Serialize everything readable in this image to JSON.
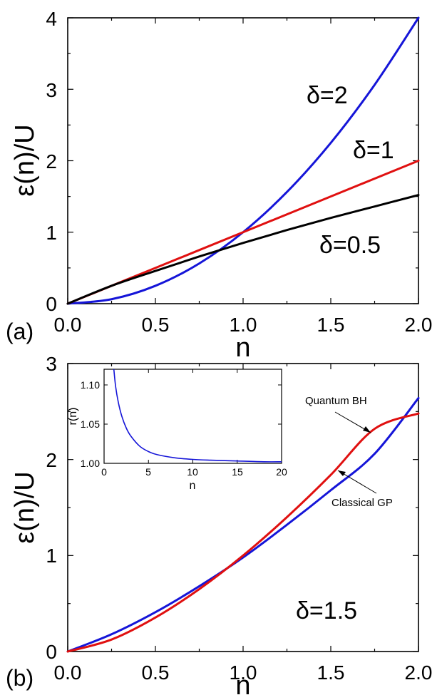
{
  "chart_data": [
    {
      "panel": "(a)",
      "type": "line",
      "xlabel": "n",
      "ylabel": "ε(n)/U",
      "xlim": [
        0.0,
        2.0
      ],
      "ylim": [
        0,
        4
      ],
      "xticks": [
        "0.0",
        "0.5",
        "1.0",
        "1.5",
        "2.0"
      ],
      "yticks": [
        "0",
        "1",
        "2",
        "3",
        "4"
      ],
      "grid": false,
      "series": [
        {
          "name": "δ=2",
          "color": "#1515d8",
          "x": [
            0,
            0.25,
            0.5,
            0.75,
            1.0,
            1.25,
            1.5,
            1.75,
            2.0
          ],
          "y": [
            0,
            0.0625,
            0.25,
            0.5625,
            1.0,
            1.5625,
            2.25,
            3.0625,
            4.0
          ]
        },
        {
          "name": "δ=1",
          "color": "#e01010",
          "x": [
            0,
            0.5,
            1.0,
            1.5,
            2.0
          ],
          "y": [
            0,
            0.5,
            1.0,
            1.5,
            2.0
          ]
        },
        {
          "name": "δ=0.5",
          "color": "#000000",
          "x": [
            0,
            0.25,
            0.5,
            0.75,
            1.0,
            1.25,
            1.5,
            1.75,
            2.0
          ],
          "y": [
            0,
            0.25,
            0.458,
            0.66,
            0.85,
            1.03,
            1.2,
            1.36,
            1.52
          ]
        }
      ]
    },
    {
      "panel": "(b)",
      "type": "line",
      "xlabel": "n",
      "ylabel": "ε(n)/U",
      "xlim": [
        0.0,
        2.0
      ],
      "ylim": [
        0,
        3
      ],
      "xticks": [
        "0.0",
        "0.5",
        "1.0",
        "1.5",
        "2.0"
      ],
      "yticks": [
        "0",
        "1",
        "2",
        "3"
      ],
      "grid": false,
      "annotation": "δ=1.5",
      "series": [
        {
          "name": "Quantum BH",
          "color": "#1515d8",
          "x": [
            0,
            0.25,
            0.5,
            0.75,
            1.0,
            1.25,
            1.5,
            1.75,
            2.0
          ],
          "y": [
            0,
            0.18,
            0.41,
            0.68,
            0.98,
            1.32,
            1.68,
            2.06,
            2.64
          ]
        },
        {
          "name": "Classical GP",
          "color": "#e01010",
          "x": [
            0,
            0.25,
            0.5,
            0.75,
            1.0,
            1.25,
            1.5,
            1.75,
            2.0
          ],
          "y": [
            0,
            0.125,
            0.354,
            0.65,
            1.0,
            1.4,
            1.84,
            2.32,
            2.48
          ]
        }
      ],
      "inset": {
        "type": "line",
        "xlabel": "n",
        "ylabel": "r(n)",
        "xlim": [
          0,
          20
        ],
        "ylim": [
          1.0,
          1.12
        ],
        "xticks": [
          "0",
          "5",
          "10",
          "15",
          "20"
        ],
        "yticks": [
          "1.00",
          "1.05",
          "1.10"
        ],
        "series": [
          {
            "color": "#1515d8",
            "x": [
              1.1,
              1.3,
              1.6,
              2,
              2.5,
              3,
              4,
              5,
              6,
              8,
              10,
              12,
              15,
              18,
              20
            ],
            "y": [
              1.12,
              1.098,
              1.078,
              1.06,
              1.045,
              1.035,
              1.022,
              1.015,
              1.011,
              1.007,
              1.005,
              1.004,
              1.003,
              1.002,
              1.002
            ]
          }
        ]
      }
    }
  ],
  "labels": {
    "panel_a": "(a)",
    "panel_b": "(b)",
    "delta2": "δ=2",
    "delta1": "δ=1",
    "delta05": "δ=0.5",
    "delta15": "δ=1.5",
    "quantum": "Quantum BH",
    "classical": "Classical GP"
  }
}
